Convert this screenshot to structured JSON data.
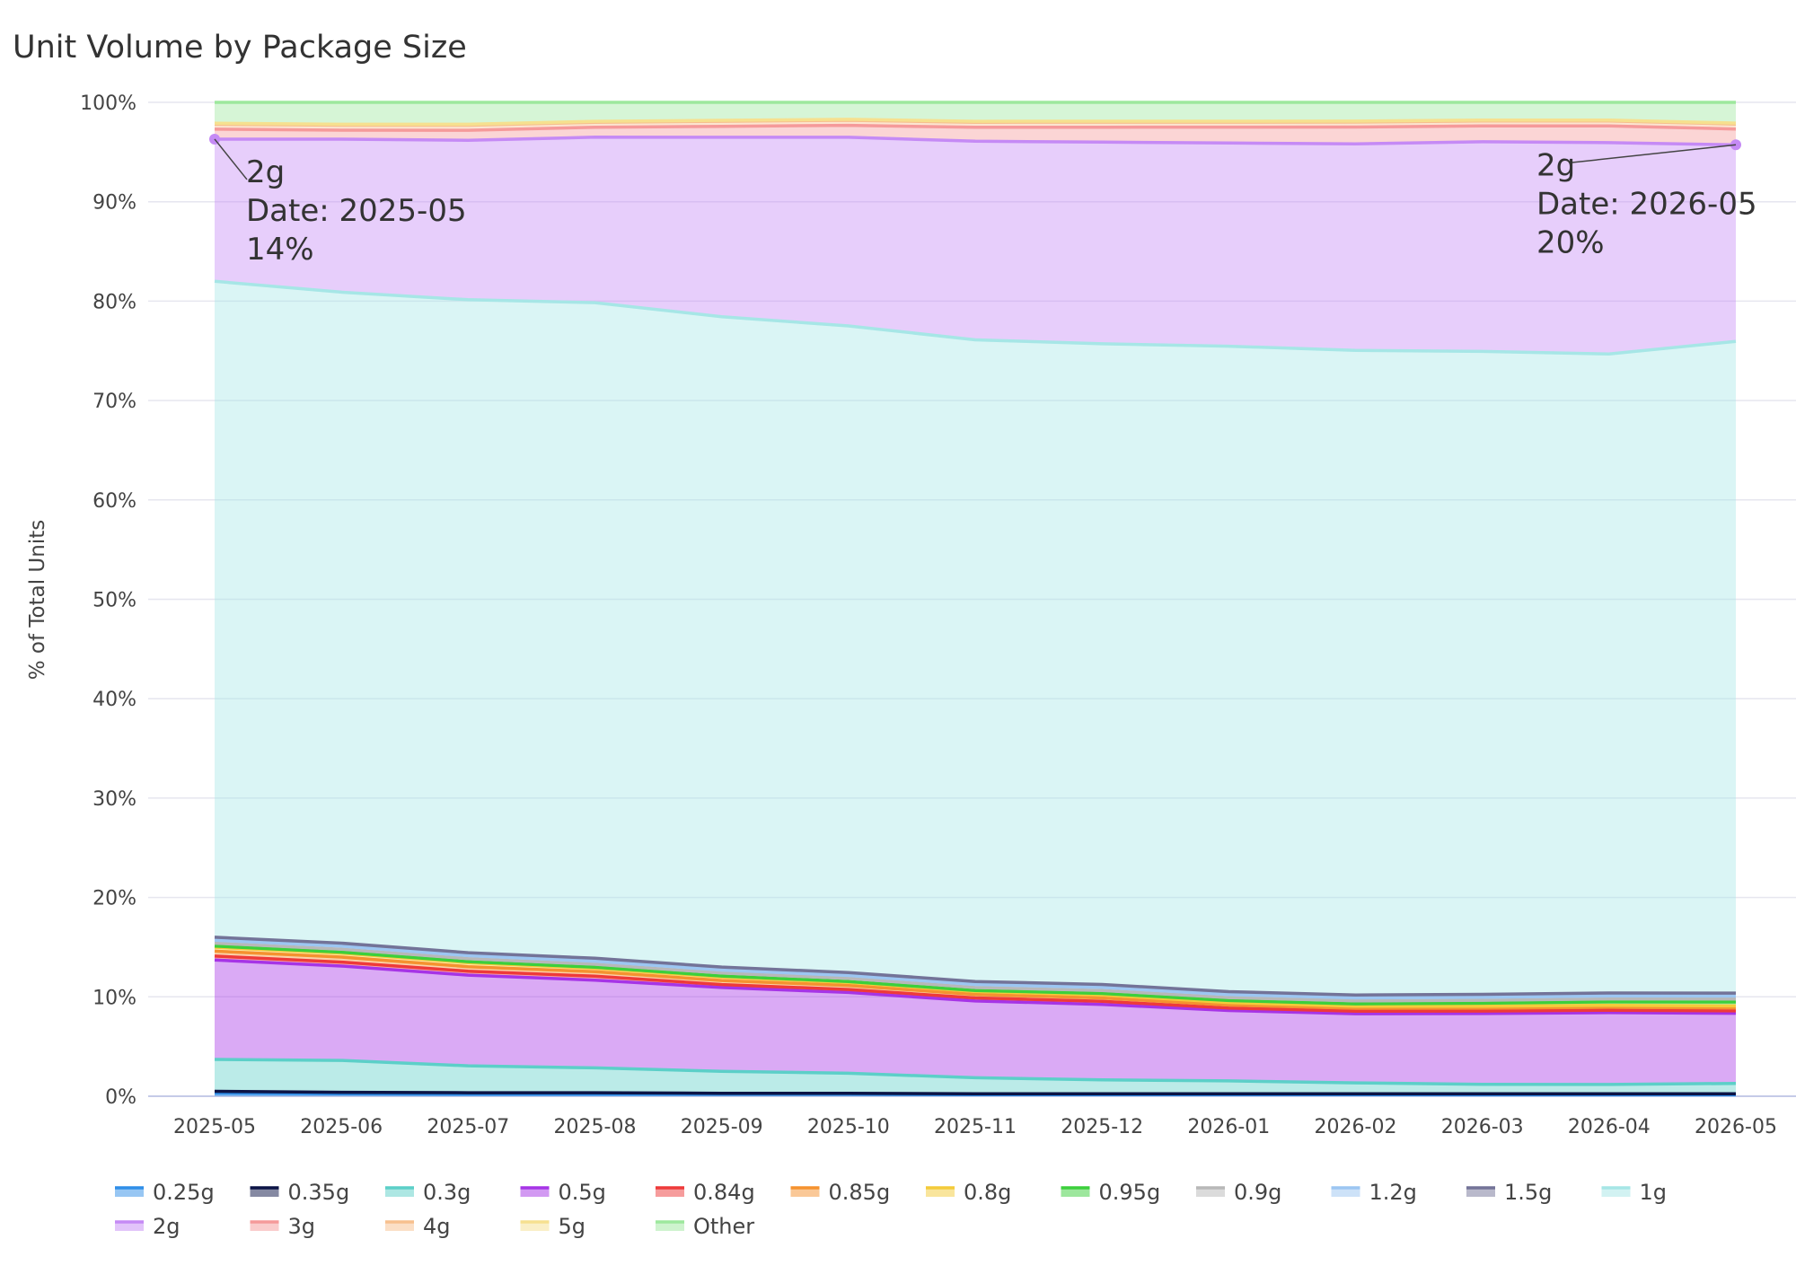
{
  "chart_data": {
    "type": "area",
    "stacked": true,
    "normalized": true,
    "title": "Unit Volume by Package Size",
    "xlabel": "",
    "ylabel": "% of Total Units",
    "ylim": [
      0,
      100
    ],
    "yticks": [
      "0%",
      "10%",
      "20%",
      "30%",
      "40%",
      "50%",
      "60%",
      "70%",
      "80%",
      "90%",
      "100%"
    ],
    "x": [
      "2025-05",
      "2025-06",
      "2025-07",
      "2025-08",
      "2025-09",
      "2025-10",
      "2025-11",
      "2025-12",
      "2026-01",
      "2026-02",
      "2026-03",
      "2026-04",
      "2026-05"
    ],
    "legend_position": "bottom",
    "series": [
      {
        "name": "0.25g",
        "color": "#2f8ee8",
        "values": [
          0.3,
          0.25,
          0.2,
          0.2,
          0.2,
          0.2,
          0.15,
          0.15,
          0.15,
          0.15,
          0.15,
          0.15,
          0.15
        ]
      },
      {
        "name": "0.35g",
        "color": "#0c1446",
        "values": [
          0.2,
          0.15,
          0.15,
          0.15,
          0.1,
          0.1,
          0.1,
          0.1,
          0.1,
          0.1,
          0.1,
          0.1,
          0.1
        ]
      },
      {
        "name": "0.3g",
        "color": "#5ccfc8",
        "values": [
          3.2,
          3.2,
          2.7,
          2.5,
          2.2,
          2.0,
          1.6,
          1.4,
          1.3,
          1.1,
          0.95,
          0.95,
          1.05
        ]
      },
      {
        "name": "0.5g",
        "color": "#a634e6",
        "values": [
          10.0,
          9.5,
          9.1,
          8.8,
          8.4,
          8.1,
          7.7,
          7.6,
          7.1,
          7.0,
          7.2,
          7.3,
          7.1
        ]
      },
      {
        "name": "0.84g",
        "color": "#ee3a3a",
        "values": [
          0.4,
          0.4,
          0.4,
          0.4,
          0.3,
          0.3,
          0.3,
          0.3,
          0.25,
          0.25,
          0.25,
          0.25,
          0.25
        ]
      },
      {
        "name": "0.85g",
        "color": "#f5922f",
        "values": [
          0.5,
          0.5,
          0.45,
          0.45,
          0.4,
          0.4,
          0.35,
          0.35,
          0.3,
          0.3,
          0.3,
          0.3,
          0.3
        ]
      },
      {
        "name": "0.8g",
        "color": "#f4cb3a",
        "values": [
          0.4,
          0.4,
          0.4,
          0.35,
          0.35,
          0.3,
          0.3,
          0.3,
          0.25,
          0.2,
          0.2,
          0.2,
          0.2
        ]
      },
      {
        "name": "0.95g",
        "color": "#3ccf3c",
        "values": [
          0.1,
          0.1,
          0.1,
          0.1,
          0.1,
          0.1,
          0.1,
          0.15,
          0.2,
          0.25,
          0.3,
          0.35,
          0.4
        ]
      },
      {
        "name": "0.9g",
        "color": "#b8b8b8",
        "values": [
          0.3,
          0.3,
          0.3,
          0.3,
          0.3,
          0.3,
          0.3,
          0.3,
          0.3,
          0.3,
          0.3,
          0.3,
          0.3
        ]
      },
      {
        "name": "1.2g",
        "color": "#9cc6f2",
        "values": [
          0.3,
          0.3,
          0.3,
          0.3,
          0.3,
          0.3,
          0.3,
          0.3,
          0.3,
          0.3,
          0.3,
          0.3,
          0.3
        ]
      },
      {
        "name": "1.5g",
        "color": "#737398",
        "values": [
          0.3,
          0.3,
          0.3,
          0.3,
          0.3,
          0.3,
          0.3,
          0.3,
          0.3,
          0.3,
          0.3,
          0.3,
          0.3
        ]
      },
      {
        "name": "1g",
        "color": "#a6e6e6",
        "values": [
          66.0,
          65.5,
          65.5,
          65.8,
          65.2,
          64.8,
          64.3,
          64.5,
          65.1,
          65.2,
          65.3,
          65.0,
          66.0
        ]
      },
      {
        "name": "2g",
        "color": "#c58af5",
        "values": [
          14.3,
          15.4,
          16.0,
          16.6,
          18.0,
          18.9,
          19.9,
          20.3,
          20.5,
          20.9,
          21.3,
          21.5,
          19.9
        ]
      },
      {
        "name": "3g",
        "color": "#f59a9a",
        "values": [
          1.0,
          0.9,
          1.0,
          1.0,
          1.1,
          1.2,
          1.4,
          1.5,
          1.6,
          1.7,
          1.6,
          1.7,
          1.6
        ]
      },
      {
        "name": "4g",
        "color": "#f7c08e",
        "values": [
          0.5,
          0.5,
          0.5,
          0.5,
          0.5,
          0.5,
          0.5,
          0.5,
          0.5,
          0.5,
          0.5,
          0.5,
          0.5
        ]
      },
      {
        "name": "5g",
        "color": "#f6e08f",
        "values": [
          0.1,
          0.1,
          0.1,
          0.1,
          0.1,
          0.1,
          0.1,
          0.1,
          0.1,
          0.1,
          0.1,
          0.1,
          0.1
        ]
      },
      {
        "name": "Other",
        "color": "#9de89d",
        "values": [
          2.1,
          2.2,
          2.2,
          1.9,
          1.8,
          1.7,
          1.9,
          1.9,
          1.9,
          1.9,
          1.8,
          1.8,
          2.1
        ]
      }
    ],
    "annotations": [
      {
        "series": "2g",
        "x": "2025-05",
        "lines": [
          "2g",
          "Date: 2025-05",
          "14%"
        ]
      },
      {
        "series": "2g",
        "x": "2026-05",
        "lines": [
          "2g",
          "Date: 2026-05",
          "20%"
        ]
      }
    ],
    "grid": true
  }
}
